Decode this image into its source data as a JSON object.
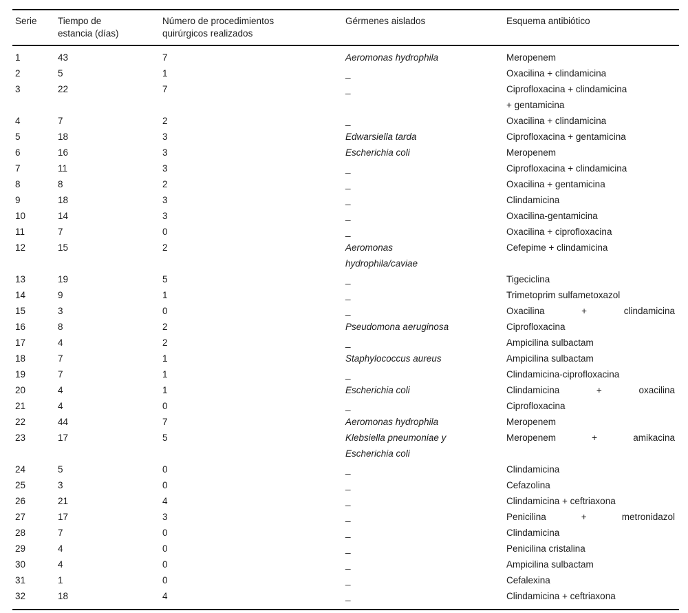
{
  "table": {
    "columns": [
      {
        "key": "serie",
        "label": "Serie"
      },
      {
        "key": "dias",
        "label": "Tiempo de\nestancia (días)"
      },
      {
        "key": "proc",
        "label": "Número de procedimientos\nquirúrgicos realizados"
      },
      {
        "key": "germen",
        "label": "Gérmenes aislados"
      },
      {
        "key": "antibiotico",
        "label": "Esquema antibiótico"
      }
    ],
    "empty_marker": "_",
    "rows": [
      {
        "serie": "1",
        "dias": "43",
        "proc": "7",
        "germen": "Aeromonas hydrophila",
        "antibiotico": "Meropenem"
      },
      {
        "serie": "2",
        "dias": "5",
        "proc": "1",
        "germen": "_",
        "antibiotico": "Oxacilina + clindamicina"
      },
      {
        "serie": "3",
        "dias": "22",
        "proc": "7",
        "germen": "_",
        "antibiotico": "Ciprofloxacina + clindamicina\n+ gentamicina"
      },
      {
        "serie": "4",
        "dias": "7",
        "proc": "2",
        "germen": "_",
        "antibiotico": "Oxacilina + clindamicina"
      },
      {
        "serie": "5",
        "dias": "18",
        "proc": "3",
        "germen": "Edwarsiella tarda",
        "antibiotico": "Ciprofloxacina + gentamicina"
      },
      {
        "serie": "6",
        "dias": "16",
        "proc": "3",
        "germen": "Escherichia coli",
        "antibiotico": "Meropenem"
      },
      {
        "serie": "7",
        "dias": "11",
        "proc": "3",
        "germen": "_",
        "antibiotico": "Ciprofloxacina + clindamicina"
      },
      {
        "serie": "8",
        "dias": "8",
        "proc": "2",
        "germen": "_",
        "antibiotico": "Oxacilina + gentamicina"
      },
      {
        "serie": "9",
        "dias": "18",
        "proc": "3",
        "germen": "_",
        "antibiotico": "Clindamicina"
      },
      {
        "serie": "10",
        "dias": "14",
        "proc": "3",
        "germen": "_",
        "antibiotico": "Oxacilina-gentamicina"
      },
      {
        "serie": "11",
        "dias": "7",
        "proc": "0",
        "germen": "_",
        "antibiotico": "Oxacilina + ciprofloxacina"
      },
      {
        "serie": "12",
        "dias": "15",
        "proc": "2",
        "germen": "Aeromonas\nhydrophila/caviae",
        "antibiotico": "Cefepime + clindamicina"
      },
      {
        "serie": "13",
        "dias": "19",
        "proc": "5",
        "germen": "_",
        "antibiotico": "Tigeciclina"
      },
      {
        "serie": "14",
        "dias": "9",
        "proc": "1",
        "germen": "_",
        "antibiotico": "Trimetoprim sulfametoxazol"
      },
      {
        "serie": "15",
        "dias": "3",
        "proc": "0",
        "germen": "_",
        "antibiotico": "Oxacilina + clindamicina",
        "justify": true
      },
      {
        "serie": "16",
        "dias": "8",
        "proc": "2",
        "germen": "Pseudomona aeruginosa",
        "antibiotico": "Ciprofloxacina"
      },
      {
        "serie": "17",
        "dias": "4",
        "proc": "2",
        "germen": "_",
        "antibiotico": "Ampicilina sulbactam"
      },
      {
        "serie": "18",
        "dias": "7",
        "proc": "1",
        "germen": "Staphylococcus aureus",
        "antibiotico": "Ampicilina sulbactam"
      },
      {
        "serie": "19",
        "dias": "7",
        "proc": "1",
        "germen": "_",
        "antibiotico": "Clindamicina-ciprofloxacina"
      },
      {
        "serie": "20",
        "dias": "4",
        "proc": "1",
        "germen": "Escherichia coli",
        "antibiotico": "Clindamicina + oxacilina",
        "justify": true
      },
      {
        "serie": "21",
        "dias": "4",
        "proc": "0",
        "germen": "_",
        "antibiotico": "Ciprofloxacina"
      },
      {
        "serie": "22",
        "dias": "44",
        "proc": "7",
        "germen": "Aeromonas hydrophila",
        "antibiotico": "Meropenem"
      },
      {
        "serie": "23",
        "dias": "17",
        "proc": "5",
        "germen": "Klebsiella pneumoniae y\nEscherichia coli",
        "antibiotico": "Meropenem + amikacina",
        "justify": true
      },
      {
        "serie": "24",
        "dias": "5",
        "proc": "0",
        "germen": "_",
        "antibiotico": "Clindamicina"
      },
      {
        "serie": "25",
        "dias": "3",
        "proc": "0",
        "germen": "_",
        "antibiotico": "Cefazolina"
      },
      {
        "serie": "26",
        "dias": "21",
        "proc": "4",
        "germen": "_",
        "antibiotico": "Clindamicina + ceftriaxona"
      },
      {
        "serie": "27",
        "dias": "17",
        "proc": "3",
        "germen": "_",
        "antibiotico": "Penicilina + metronidazol",
        "justify": true
      },
      {
        "serie": "28",
        "dias": "7",
        "proc": "0",
        "germen": "_",
        "antibiotico": "Clindamicina"
      },
      {
        "serie": "29",
        "dias": "4",
        "proc": "0",
        "germen": "_",
        "antibiotico": "Penicilina cristalina"
      },
      {
        "serie": "30",
        "dias": "4",
        "proc": "0",
        "germen": "_",
        "antibiotico": "Ampicilina sulbactam"
      },
      {
        "serie": "31",
        "dias": "1",
        "proc": "0",
        "germen": "_",
        "antibiotico": "Cefalexina"
      },
      {
        "serie": "32",
        "dias": "18",
        "proc": "4",
        "germen": "_",
        "antibiotico": "Clindamicina + ceftriaxona"
      }
    ]
  }
}
